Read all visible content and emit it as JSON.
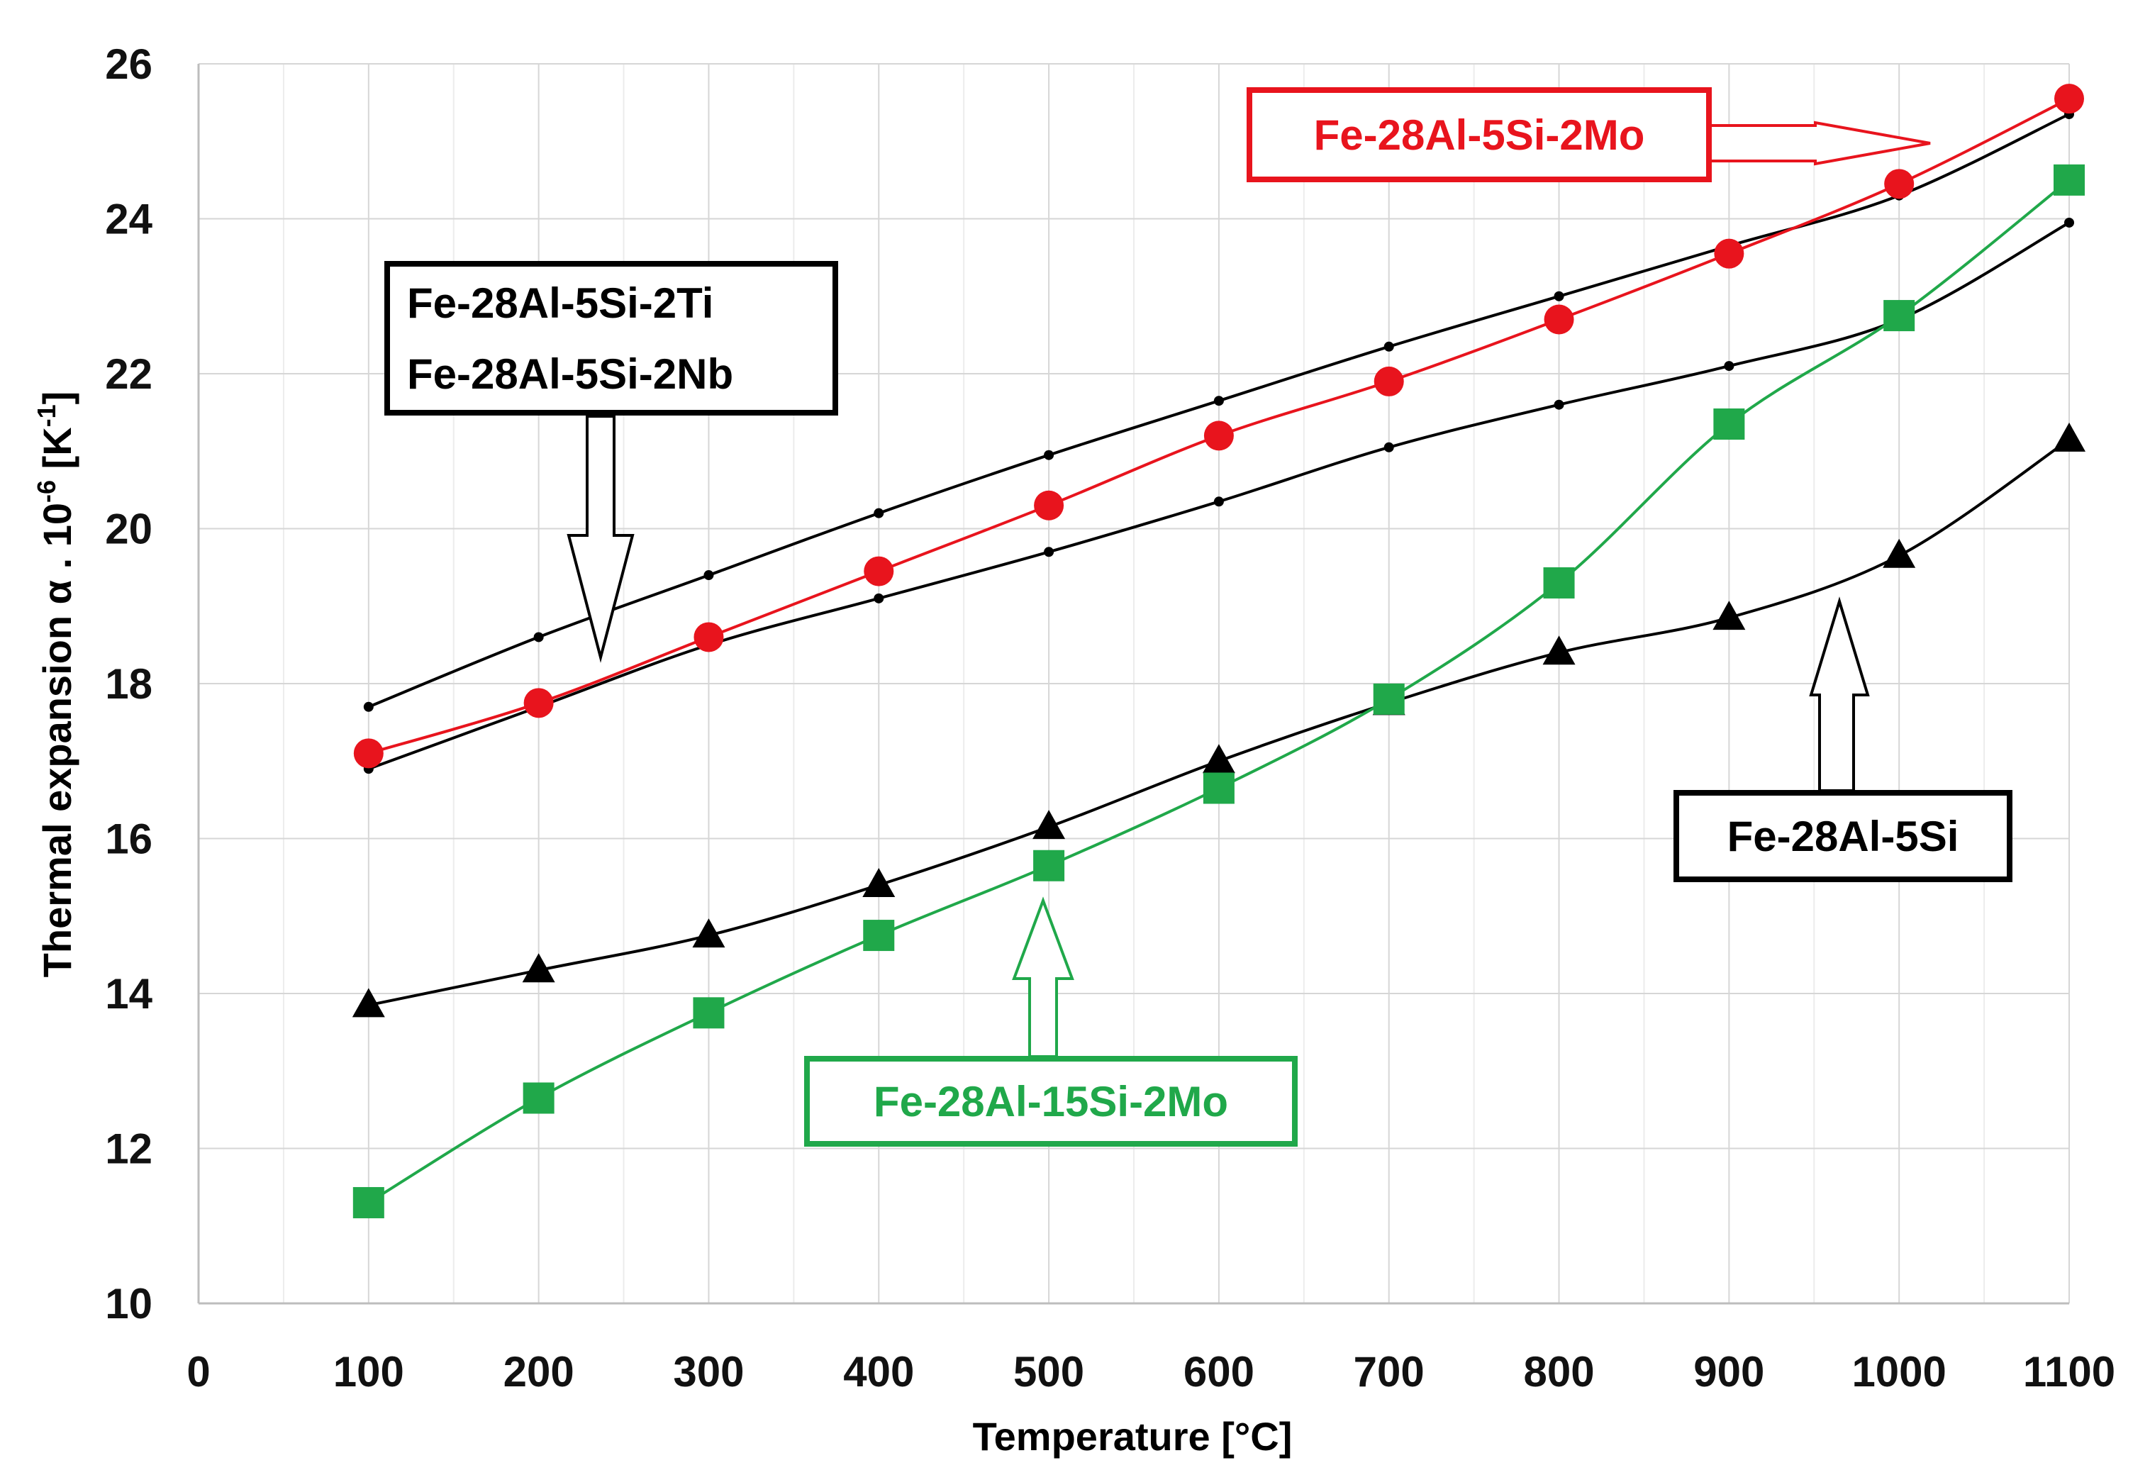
{
  "chart_data": {
    "type": "line",
    "title": "",
    "xlabel": "Temperature [°C]",
    "ylabel": {
      "main": "Thermal expansion α . 10",
      "sup1": "-6",
      "mid": " [K",
      "sup2": "-1",
      "end": "]"
    },
    "xlim": [
      0,
      1100
    ],
    "ylim": [
      10,
      26
    ],
    "xticks": [
      0,
      100,
      200,
      300,
      400,
      500,
      600,
      700,
      800,
      900,
      1000,
      1100
    ],
    "yticks": [
      10,
      12,
      14,
      16,
      18,
      20,
      22,
      24,
      26
    ],
    "grid": true,
    "x": [
      100,
      200,
      300,
      400,
      500,
      600,
      700,
      800,
      900,
      1000,
      1100
    ],
    "series": [
      {
        "name": "Fe-28Al-5Si-2Ti (upper black)",
        "marker": "small-dot",
        "color": "#000000",
        "values": [
          17.7,
          18.6,
          19.4,
          20.2,
          20.95,
          21.65,
          22.35,
          23.0,
          23.65,
          24.3,
          25.35
        ]
      },
      {
        "name": "Fe-28Al-5Si-2Nb (lower black)",
        "marker": "small-dot",
        "color": "#000000",
        "values": [
          16.9,
          17.7,
          18.5,
          19.1,
          19.7,
          20.35,
          21.05,
          21.6,
          22.1,
          22.7,
          23.95
        ]
      },
      {
        "name": "Fe-28Al-5Si-2Mo",
        "marker": "circle",
        "color": "#e8141d",
        "values": [
          17.1,
          17.75,
          18.6,
          19.45,
          20.3,
          21.2,
          21.9,
          22.7,
          23.55,
          24.45,
          25.55
        ]
      },
      {
        "name": "Fe-28Al-5Si",
        "marker": "triangle",
        "color": "#000000",
        "values": [
          13.85,
          14.3,
          14.75,
          15.4,
          16.15,
          17.0,
          17.75,
          18.4,
          18.85,
          19.65,
          21.15
        ]
      },
      {
        "name": "Fe-28Al-15Si-2Mo",
        "marker": "square",
        "color": "#20a84a",
        "values": [
          11.3,
          12.65,
          13.75,
          14.75,
          15.65,
          16.65,
          17.8,
          19.3,
          21.35,
          22.75,
          24.5
        ]
      }
    ],
    "annotations": [
      {
        "id": "mo",
        "lines": [
          "Fe-28Al-5Si-2Mo"
        ],
        "color": "#e8141d",
        "arrow": "right"
      },
      {
        "id": "ti-nb",
        "lines": [
          "Fe-28Al-5Si-2Ti",
          "Fe-28Al-5Si-2Nb"
        ],
        "color": "#000000",
        "arrow": "down"
      },
      {
        "id": "base",
        "lines": [
          "Fe-28Al-5Si"
        ],
        "color": "#000000",
        "arrow": "up"
      },
      {
        "id": "si15",
        "lines": [
          "Fe-28Al-15Si-2Mo"
        ],
        "color": "#20a84a",
        "arrow": "up"
      }
    ]
  }
}
